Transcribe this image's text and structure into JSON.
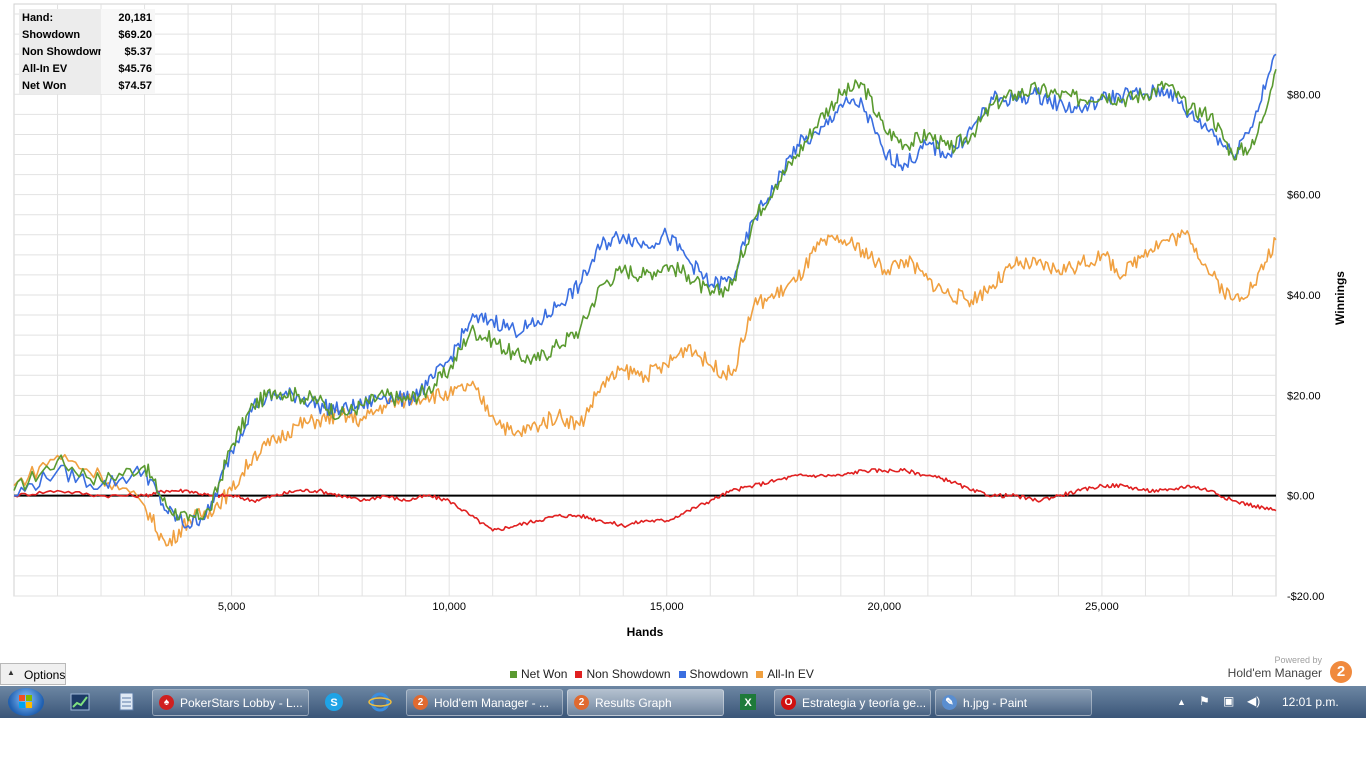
{
  "stats": {
    "rows": [
      {
        "label": "Hand:",
        "value": "20,181"
      },
      {
        "label": "Showdown",
        "value": "$69.20"
      },
      {
        "label": "Non Showdown",
        "value": "$5.37"
      },
      {
        "label": "All-In EV",
        "value": "$45.76"
      },
      {
        "label": "Net Won",
        "value": "$74.57"
      }
    ]
  },
  "options_label": "Options",
  "brand": {
    "powered_by": "Powered by",
    "name": "Hold'em Manager",
    "logo_char": "2"
  },
  "chart_data": {
    "type": "line",
    "xlabel": "Hands",
    "ylabel": "Winnings",
    "xlim": [
      0,
      29000
    ],
    "ylim": [
      -20,
      98
    ],
    "x_ticks": [
      5000,
      10000,
      15000,
      20000,
      25000
    ],
    "x_tick_labels": [
      "5,000",
      "10,000",
      "15,000",
      "20,000",
      "25,000"
    ],
    "y_ticks": [
      -20,
      0,
      20,
      40,
      60,
      80
    ],
    "y_tick_labels": [
      "-$20.00",
      "$0.00",
      "$20.00",
      "$40.00",
      "$60.00",
      "$80.00"
    ],
    "grid": true,
    "legend_position": "bottom-center",
    "x": [
      0,
      1000,
      2000,
      3000,
      3500,
      4000,
      4500,
      5000,
      5500,
      6000,
      6500,
      7000,
      7500,
      8000,
      8500,
      9000,
      9500,
      10000,
      10500,
      11000,
      11500,
      12000,
      12500,
      13000,
      13500,
      14000,
      14500,
      15000,
      15500,
      16000,
      16500,
      17000,
      17500,
      18000,
      18500,
      19000,
      19500,
      20000,
      20500,
      21000,
      21500,
      22000,
      22500,
      23000,
      23500,
      24000,
      24500,
      25000,
      25500,
      26000,
      26500,
      27000,
      27500,
      28000,
      28500,
      29000
    ],
    "series": [
      {
        "name": "Net Won",
        "color": "#5a9a30",
        "values": [
          1,
          7,
          3,
          6,
          -2,
          -5,
          -3,
          10,
          18,
          21,
          20,
          19,
          16,
          18,
          20,
          19,
          21,
          25,
          33,
          31,
          28,
          27,
          30,
          33,
          42,
          45,
          44,
          46,
          44,
          40,
          42,
          55,
          62,
          68,
          75,
          80,
          82,
          73,
          70,
          72,
          69,
          72,
          78,
          80,
          81,
          80,
          79,
          80,
          79,
          80,
          82,
          77,
          76,
          68,
          70,
          85
        ]
      },
      {
        "name": "Non Showdown",
        "color": "#e02020",
        "values": [
          0,
          1,
          0,
          0,
          1,
          1,
          0,
          0,
          -1,
          0,
          1,
          1,
          0,
          -1,
          0,
          -1,
          0,
          -1,
          -4,
          -7,
          -6,
          -5,
          -4,
          -4,
          -5,
          -6,
          -5,
          -5,
          -3,
          -1,
          1,
          2,
          3,
          4,
          4,
          4,
          5,
          5,
          5,
          4,
          3,
          1,
          0,
          0,
          -1,
          0,
          1,
          2,
          2,
          1,
          1,
          2,
          1,
          -1,
          -2,
          -3
        ]
      },
      {
        "name": "Showdown",
        "color": "#3a6ee0",
        "values": [
          0,
          5,
          2,
          5,
          -3,
          -6,
          -3,
          9,
          18,
          20,
          20,
          18,
          17,
          18,
          20,
          19,
          22,
          27,
          35,
          35,
          33,
          34,
          38,
          42,
          50,
          52,
          50,
          52,
          47,
          42,
          43,
          55,
          62,
          70,
          72,
          78,
          78,
          68,
          66,
          70,
          68,
          73,
          79,
          79,
          80,
          78,
          77,
          79,
          80,
          80,
          81,
          76,
          73,
          68,
          75,
          88
        ]
      },
      {
        "name": "All-In EV",
        "color": "#f0a040",
        "values": [
          2,
          8,
          4,
          -2,
          -10,
          -5,
          -3,
          1,
          8,
          11,
          14,
          15,
          16,
          15,
          18,
          19,
          20,
          20,
          22,
          16,
          12,
          14,
          16,
          14,
          22,
          25,
          24,
          26,
          30,
          26,
          24,
          38,
          40,
          43,
          50,
          51,
          49,
          45,
          47,
          43,
          40,
          39,
          42,
          46,
          46,
          45,
          46,
          48,
          44,
          49,
          51,
          52,
          44,
          39,
          42,
          51
        ]
      }
    ]
  },
  "taskbar": {
    "buttons": [
      {
        "label": "PokerStars Lobby - L...",
        "icon_color": "#d02020",
        "icon_char": "♠"
      },
      {
        "label": "Hold'em Manager - ...",
        "icon_color": "#e06a30",
        "icon_char": "2"
      },
      {
        "label": "Results Graph",
        "icon_color": "#e06a30",
        "icon_char": "2"
      },
      {
        "label": "Estrategia y teoría ge...",
        "icon_color": "#d01010",
        "icon_char": "O"
      },
      {
        "label": "h.jpg - Paint",
        "icon_color": "#5a8ed0",
        "icon_char": "✎"
      }
    ],
    "clock": "12:01 p.m."
  }
}
